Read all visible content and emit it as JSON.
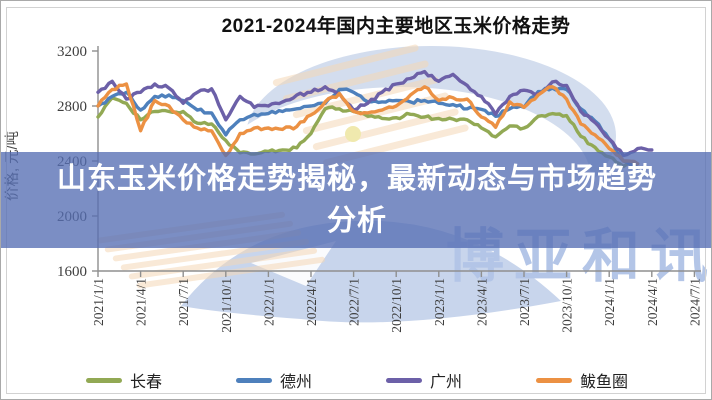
{
  "banner": {
    "line1": "山东玉米价格走势揭秘，最新动态与市场趋势",
    "line2": "分析"
  },
  "watermark": {
    "text": "博亚和讯"
  },
  "chart_data": {
    "type": "line",
    "title": "2021-2024年国内主要地区玉米价格走势",
    "ylabel": "价格, 元/吨",
    "ylim": [
      1600,
      3200
    ],
    "yticks": [
      3200,
      2800,
      2400,
      2000,
      1600
    ],
    "x_tick_labels": [
      "2021/1/1",
      "2021/4/1",
      "2021/7/1",
      "2021/10/1",
      "2022/1/1",
      "2022/4/1",
      "2022/7/1",
      "2022/10/1",
      "2023/1/1",
      "2023/4/1",
      "2023/7/1",
      "2023/10/1",
      "2024/1/1",
      "2024/4/1",
      "2024/7/1"
    ],
    "x_months": [
      "2021/1",
      "2021/2",
      "2021/3",
      "2021/4",
      "2021/5",
      "2021/6",
      "2021/7",
      "2021/8",
      "2021/9",
      "2021/10",
      "2021/11",
      "2021/12",
      "2022/1",
      "2022/2",
      "2022/3",
      "2022/4",
      "2022/5",
      "2022/6",
      "2022/7",
      "2022/8",
      "2022/9",
      "2022/10",
      "2022/11",
      "2022/12",
      "2023/1",
      "2023/2",
      "2023/3",
      "2023/4",
      "2023/5",
      "2023/6",
      "2023/7",
      "2023/8",
      "2023/9",
      "2023/10",
      "2023/11",
      "2023/12",
      "2024/1",
      "2024/2",
      "2024/3",
      "2024/4",
      "2024/5",
      "2024/6",
      "2024/7"
    ],
    "grid": false,
    "legend_position": "bottom",
    "series": [
      {
        "name": "长春",
        "color": "#92A954",
        "values": [
          2720,
          2860,
          2820,
          2700,
          2760,
          2760,
          2760,
          2675,
          2670,
          2550,
          2460,
          2450,
          2470,
          2480,
          2495,
          2600,
          2780,
          2780,
          2760,
          2725,
          2710,
          2715,
          2740,
          2720,
          2710,
          2705,
          2700,
          2640,
          2575,
          2655,
          2640,
          2725,
          2745,
          2730,
          2580,
          2500,
          2430,
          2360,
          2380,
          null,
          null,
          null,
          null
        ]
      },
      {
        "name": "德州",
        "color": "#4E80BC",
        "values": [
          2800,
          2870,
          2900,
          2770,
          2870,
          2880,
          2840,
          2770,
          2750,
          2590,
          2700,
          2740,
          2745,
          2760,
          2780,
          2800,
          2820,
          2920,
          2900,
          2830,
          2830,
          2840,
          2830,
          2840,
          2820,
          2810,
          2780,
          2775,
          2725,
          2780,
          2790,
          2905,
          2930,
          2920,
          2780,
          2690,
          2560,
          2400,
          2350,
          null,
          null,
          null,
          null
        ]
      },
      {
        "name": "广州",
        "color": "#6C60A8",
        "values": [
          2900,
          2980,
          2850,
          2900,
          2960,
          2930,
          2820,
          2900,
          2925,
          2700,
          2870,
          2790,
          2800,
          2830,
          2880,
          2900,
          2940,
          2890,
          2770,
          2820,
          2900,
          2960,
          3000,
          3050,
          2980,
          3030,
          2950,
          2870,
          2740,
          2870,
          2915,
          2890,
          2975,
          2950,
          2760,
          2680,
          2560,
          2440,
          2490,
          2480,
          null,
          null,
          null
        ]
      },
      {
        "name": "鲅鱼圈",
        "color": "#EC9143",
        "values": [
          2800,
          2920,
          2960,
          2620,
          2840,
          2800,
          2700,
          2640,
          2620,
          2440,
          2600,
          2640,
          2640,
          2630,
          2650,
          2735,
          2830,
          2890,
          2760,
          2750,
          2770,
          2800,
          2880,
          2940,
          2840,
          2860,
          2850,
          2720,
          2645,
          2830,
          2790,
          2880,
          2940,
          2850,
          2670,
          2590,
          2490,
          2400,
          2380,
          null,
          null,
          null,
          null
        ]
      }
    ]
  }
}
